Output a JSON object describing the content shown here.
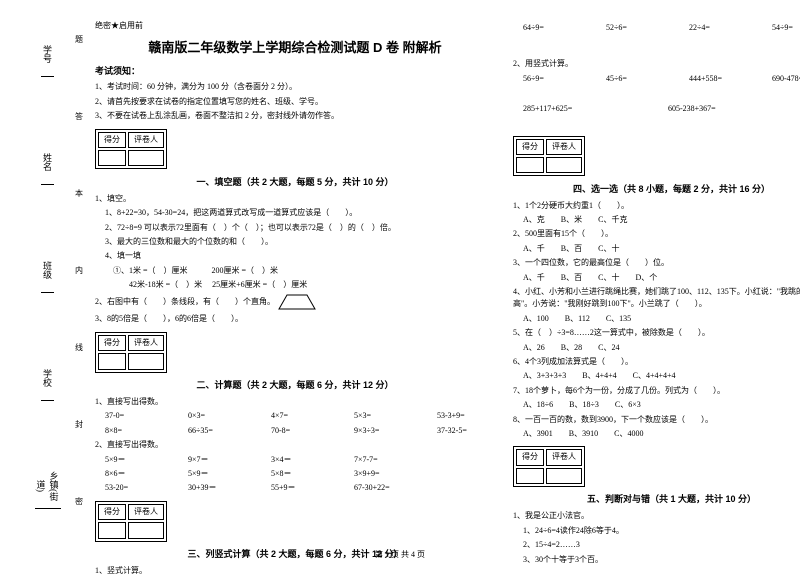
{
  "sideLabels": [
    "学号",
    "姓名",
    "班级",
    "学校",
    "乡镇(街道)"
  ],
  "sideMarks": [
    "题",
    "答",
    "本",
    "内",
    "线",
    "封",
    "密"
  ],
  "secret": "绝密★启用前",
  "title": "赣南版二年级数学上学期综合检测试题 D 卷 附解析",
  "noticeHeader": "考试须知：",
  "notices": [
    "1、考试时间：60 分钟，满分为 100 分（含卷面分 2 分）。",
    "2、请首先按要求在试卷的指定位置填写您的姓名、班级、学号。",
    "3、不要在试卷上乱涂乱画，卷面不整洁扣 2 分，密封线外请勿作答。"
  ],
  "scoreCols": [
    "得分",
    "评卷人"
  ],
  "sections": {
    "s1": "一、填空题（共 2 大题，每题 5 分，共计 10 分）",
    "s2": "二、计算题（共 2 大题，每题 6 分，共计 12 分）",
    "s3": "三、列竖式计算（共 2 大题，每题 6 分，共计 12 分）",
    "s4": "四、选一选（共 8 小题，每题 2 分，共计 16 分）",
    "s5": "五、判断对与错（共 1 大题，共计 10 分）"
  },
  "q1": {
    "stem": "1、填空。",
    "lines": [
      "1、8+22=30，54-30=24，把这两道算式改写成一道算式应该是（　　）。",
      "2、72÷8=9 可以表示72里面有（　）个（　）；也可以表示72是（　）的（　）倍。",
      "3、最大的三位数和最大的个位数的和（　　）。",
      "4、填一填",
      "　①、1米 =（　）厘米　　　200厘米 =（　）米",
      "　　　42米-18米 =（　）米　 25厘米+6厘米 =（　）厘米"
    ],
    "line2": "2、右图中有（　　）条线段，有（　　）个直角。",
    "line3": "3、8的5倍是（　　），6的6倍是（　　）。"
  },
  "q2": {
    "stem1": "1、直接写出得数。",
    "eqs1": [
      [
        "37-0=",
        "0×3=",
        "4×7=",
        "5×3=",
        "53-3+9="
      ],
      [
        "8×8=",
        "66÷35=",
        "70-8=",
        "9×3÷3=",
        "37-32-5="
      ]
    ],
    "stem2": "2、直接写出得数。",
    "eqs2": [
      [
        "5×9＝",
        "9×7＝",
        "3×4＝",
        "7×7-7="
      ],
      [
        "8×6＝",
        "5×9＝",
        "5×8＝",
        "3×9+9="
      ],
      [
        "53-20=",
        "30+39＝",
        "55+9＝",
        "67-30+22="
      ]
    ]
  },
  "q3": {
    "stem": "1、竖式计算。"
  },
  "col2top": [
    "64÷9=",
    "52÷6=",
    "22÷4=",
    "54÷9="
  ],
  "q3b": {
    "stem": "2、用竖式计算。",
    "eqs": [
      [
        "56÷9=",
        "45÷6=",
        "444+558=",
        "690-478="
      ],
      [
        "285+117+625=",
        "",
        "605-238+367=",
        ""
      ]
    ]
  },
  "q4": [
    {
      "t": "1、1个2分硬币大约重1（　　）。",
      "opts": [
        "A、克",
        "B、米",
        "C、千克"
      ]
    },
    {
      "t": "2、500里面有15个（　　）。",
      "opts": [
        "A、千",
        "B、百",
        "C、十"
      ]
    },
    {
      "t": "3、一个四位数，它的最高位是（　　）位。",
      "opts": [
        "A、千",
        "B、百",
        "C、十",
        "D、个"
      ]
    },
    {
      "t": "4、小红、小芳和小兰进行跳绳比赛，她们跳了100、112、135下。小红说：\"我跳的不是最高\"。小芳说：\"我刚好跳到100下\"。小兰跳了（　　）。",
      "opts": [
        "A、100",
        "B、112",
        "C、135"
      ]
    },
    {
      "t": "5、在（　）÷3=8……2这一算式中，被除数是（　　）。",
      "opts": [
        "A、26",
        "B、28",
        "C、24"
      ]
    },
    {
      "t": "6、4个3列成加法算式是（　　）。",
      "opts": [
        "A、3+3+3+3",
        "B、4+4+4",
        "C、4+4+4+4"
      ]
    },
    {
      "t": "7、18个萝卜，每6个为一份，分成了几份。列式为（　　）。",
      "opts": [
        "A、18÷6",
        "B、18÷3",
        "C、6×3"
      ]
    },
    {
      "t": "8、一百一百的数，数到3900，下一个数应该是（　　）。",
      "opts": [
        "A、3901",
        "B、3910",
        "C、4000"
      ]
    }
  ],
  "q5": {
    "stem": "1、我是公正小法官。",
    "items": [
      "1、24÷6=4读作24除6等于4。",
      "2、15÷4=2……3",
      "3、30个十等于3个百。"
    ]
  },
  "footer": "第 1 页 共 4 页"
}
